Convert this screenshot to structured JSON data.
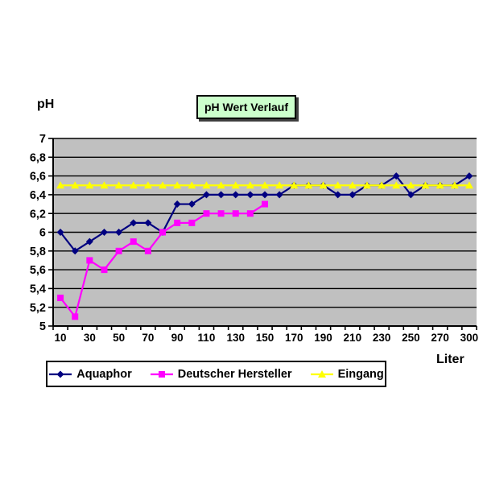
{
  "chart_data": {
    "type": "line",
    "title": "pH Wert Verlauf",
    "xlabel": "Liter",
    "ylabel": "pH",
    "ylim": [
      5,
      7
    ],
    "y_tick_step": 0.2,
    "y_tick_labels": [
      "7",
      "6,8",
      "6,6",
      "6,4",
      "6,2",
      "6",
      "5,8",
      "5,6",
      "5,4",
      "5,2",
      "5"
    ],
    "categories": [
      10,
      20,
      30,
      40,
      50,
      60,
      70,
      80,
      90,
      100,
      110,
      120,
      130,
      140,
      150,
      160,
      170,
      180,
      190,
      200,
      210,
      220,
      230,
      240,
      250,
      260,
      270,
      280,
      300
    ],
    "x_tick_labels_shown": [
      "10",
      "30",
      "50",
      "70",
      "90",
      "110",
      "130",
      "150",
      "170",
      "190",
      "210",
      "230",
      "250",
      "270",
      "300"
    ],
    "grid": "horizontal-on",
    "legend_position": "bottom",
    "plot_background": "#c0c0c0",
    "gridline_color": "#000000",
    "axis_color": "#000000",
    "series": [
      {
        "name": "Aquaphor",
        "color": "#000080",
        "marker": "diamond",
        "values": [
          6.0,
          5.8,
          5.9,
          6.0,
          6.0,
          6.1,
          6.1,
          6.0,
          6.3,
          6.3,
          6.4,
          6.4,
          6.4,
          6.4,
          6.4,
          6.4,
          6.5,
          6.5,
          6.5,
          6.4,
          6.4,
          6.5,
          6.5,
          6.6,
          6.4,
          6.5,
          6.5,
          6.5,
          6.6
        ]
      },
      {
        "name": "Deutscher Hersteller",
        "color": "#ff00ff",
        "marker": "square",
        "values": [
          5.3,
          5.1,
          5.7,
          5.6,
          5.8,
          5.9,
          5.8,
          6.0,
          6.1,
          6.1,
          6.2,
          6.2,
          6.2,
          6.2,
          6.3,
          null,
          null,
          null,
          null,
          null,
          null,
          null,
          null,
          null,
          null,
          null,
          null,
          null,
          null
        ]
      },
      {
        "name": "Eingang",
        "color": "#ffff00",
        "marker": "triangle",
        "values": [
          6.5,
          6.5,
          6.5,
          6.5,
          6.5,
          6.5,
          6.5,
          6.5,
          6.5,
          6.5,
          6.5,
          6.5,
          6.5,
          6.5,
          6.5,
          6.5,
          6.5,
          6.5,
          6.5,
          6.5,
          6.5,
          6.5,
          6.5,
          6.5,
          6.5,
          6.5,
          6.5,
          6.5,
          6.5
        ]
      }
    ]
  }
}
